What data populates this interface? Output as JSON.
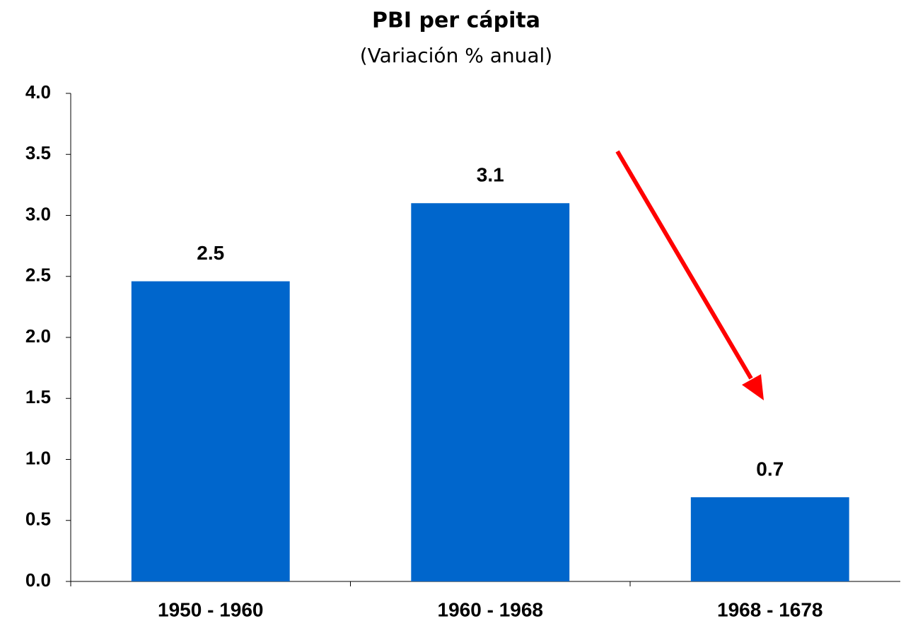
{
  "chart_data": {
    "type": "bar",
    "title": "PBI per cápita",
    "subtitle": "(Variación % anual)",
    "categories": [
      "1950 - 1960",
      "1960 - 1968",
      "1968 - 1678"
    ],
    "values": [
      2.46,
      3.1,
      0.69
    ],
    "value_labels": [
      "2.5",
      "3.1",
      "0.7"
    ],
    "color": "#0066cc",
    "ylim": [
      0,
      4
    ],
    "yticks": [
      {
        "value": 0,
        "label": "0.0"
      },
      0.5,
      {
        "value": 1,
        "label": "1.0"
      },
      1.5,
      {
        "value": 2,
        "label": "2.0"
      },
      2.5,
      {
        "value": 3,
        "label": "3.0"
      },
      3.5,
      {
        "value": 4,
        "label": "4.0"
      }
    ],
    "grid": false
  }
}
